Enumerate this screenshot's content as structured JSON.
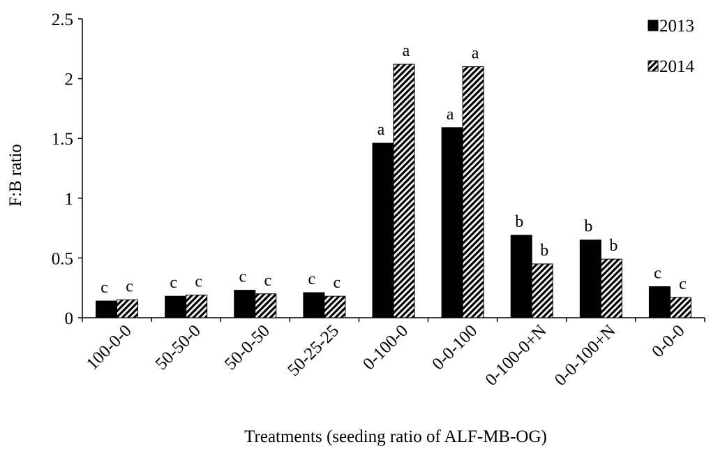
{
  "chart_data": {
    "type": "bar",
    "xlabel": "Treatments (seeding ratio of ALF-MB-OG)",
    "ylabel": "F:B ratio",
    "ylim": [
      0,
      2.5
    ],
    "yticks": [
      "0",
      "0.5",
      "1",
      "1.5",
      "2",
      "2.5"
    ],
    "categories": [
      "100-0-0",
      "50-50-0",
      "50-0-50",
      "50-25-25",
      "0-100-0",
      "0-0-100",
      "0-100-0+N",
      "0-0-100+N",
      "0-0-0"
    ],
    "series": [
      {
        "name": "2013",
        "color": "#000000",
        "pattern": "solid",
        "values": [
          0.14,
          0.18,
          0.23,
          0.21,
          1.46,
          1.59,
          0.69,
          0.65,
          0.26
        ],
        "letters": [
          "c",
          "c",
          "c",
          "c",
          "a",
          "a",
          "b",
          "b",
          "c"
        ]
      },
      {
        "name": "2014",
        "color": "#000000",
        "pattern": "diagonal-hatch",
        "values": [
          0.15,
          0.19,
          0.2,
          0.18,
          2.12,
          2.1,
          0.45,
          0.49,
          0.17
        ],
        "letters": [
          "c",
          "c",
          "c",
          "c",
          "a",
          "a",
          "b",
          "b",
          "c"
        ]
      }
    ],
    "legend_position": "top-right",
    "grid": false
  }
}
